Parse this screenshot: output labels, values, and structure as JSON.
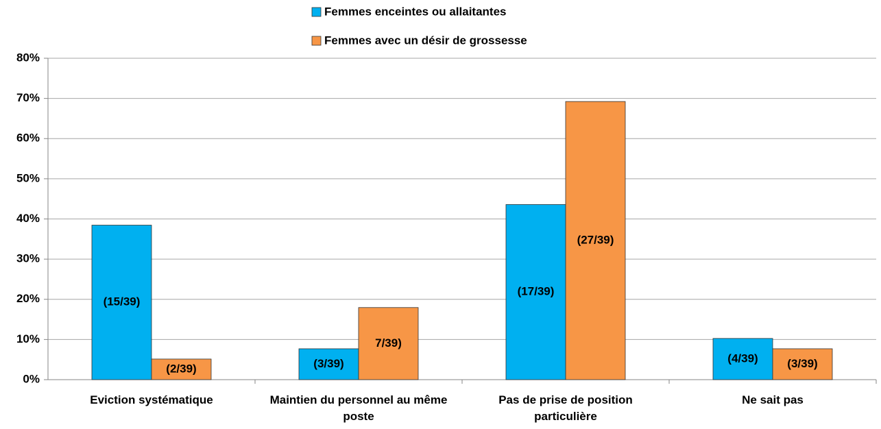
{
  "chart_data": {
    "type": "bar",
    "categories": [
      "Eviction systématique",
      "Maintien du personnel au même poste",
      "Pas de prise de position particulière",
      "Ne sait pas"
    ],
    "series": [
      {
        "name": "Femmes enceintes ou allaitantes",
        "color": "#00b0f0",
        "values": [
          38.46,
          7.69,
          43.59,
          10.26
        ],
        "value_labels": [
          "(15/39)",
          "(3/39)",
          "(17/39)",
          "(4/39)"
        ]
      },
      {
        "name": "Femmes avec un désir de grossesse",
        "color": "#f79646",
        "values": [
          5.13,
          17.95,
          69.23,
          7.69
        ],
        "value_labels": [
          "(2/39)",
          "7/39)",
          "(27/39)",
          "(3/39)"
        ]
      }
    ],
    "ylim": [
      0,
      80
    ],
    "yticks": [
      {
        "value": 0,
        "label": "0%"
      },
      {
        "value": 10,
        "label": "10%"
      },
      {
        "value": 20,
        "label": "20%"
      },
      {
        "value": 30,
        "label": "30%"
      },
      {
        "value": 40,
        "label": "40%"
      },
      {
        "value": 50,
        "label": "50%"
      },
      {
        "value": 60,
        "label": "60%"
      },
      {
        "value": 70,
        "label": "70%"
      },
      {
        "value": 80,
        "label": "80%"
      }
    ],
    "grid": true,
    "legend": "top"
  }
}
